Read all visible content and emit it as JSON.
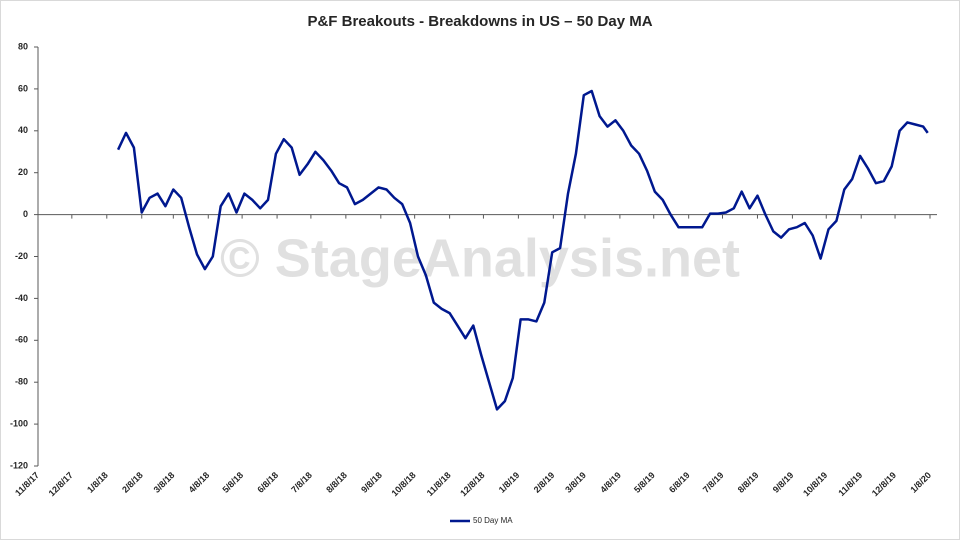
{
  "chart_data": {
    "type": "line",
    "title": "P&F Breakouts - Breakdowns in US – 50 Day MA",
    "watermark": "© StageAnalysis.net",
    "x": [
      "1/18/18",
      "1/25/18",
      "2/1/18",
      "2/8/18",
      "2/15/18",
      "2/22/18",
      "3/1/18",
      "3/8/18",
      "3/15/18",
      "3/22/18",
      "3/29/18",
      "4/5/18",
      "4/12/18",
      "4/19/18",
      "4/26/18",
      "5/3/18",
      "5/10/18",
      "5/17/18",
      "5/24/18",
      "5/31/18",
      "6/7/18",
      "6/14/18",
      "6/21/18",
      "6/28/18",
      "7/5/18",
      "7/12/18",
      "7/19/18",
      "7/26/18",
      "8/2/18",
      "8/9/18",
      "8/16/18",
      "8/23/18",
      "8/30/18",
      "9/6/18",
      "9/13/18",
      "9/20/18",
      "9/27/18",
      "10/4/18",
      "10/11/18",
      "10/18/18",
      "10/25/18",
      "11/1/18",
      "11/8/18",
      "11/15/18",
      "11/22/18",
      "11/29/18",
      "12/6/18",
      "12/13/18",
      "12/20/18",
      "12/27/18",
      "1/3/19",
      "1/10/19",
      "1/17/19",
      "1/24/19",
      "1/31/19",
      "2/7/19",
      "2/14/19",
      "2/21/19",
      "2/28/19",
      "3/7/19",
      "3/14/19",
      "3/21/19",
      "3/28/19",
      "4/4/19",
      "4/11/19",
      "4/18/19",
      "4/25/19",
      "5/2/19",
      "5/9/19",
      "5/16/19",
      "5/23/19",
      "5/30/19",
      "6/6/19",
      "6/13/19",
      "6/20/19",
      "6/27/19",
      "7/4/19",
      "7/11/19",
      "7/18/19",
      "7/25/19",
      "8/1/19",
      "8/8/19",
      "8/15/19",
      "8/22/19",
      "8/29/19",
      "9/5/19",
      "9/12/19",
      "9/19/19",
      "9/26/19",
      "10/3/19",
      "10/10/19",
      "10/17/19",
      "10/24/19",
      "10/31/19",
      "11/7/19",
      "11/14/19",
      "11/21/19",
      "11/28/19",
      "12/5/19",
      "12/12/19",
      "12/19/19",
      "12/26/19",
      "1/2/20",
      "1/6/20"
    ],
    "series": [
      {
        "name": "50 Day MA",
        "color": "#00188f",
        "values": [
          31,
          39,
          32,
          1,
          8,
          10,
          4,
          12,
          8,
          -6,
          -19,
          -26,
          -20,
          4,
          10,
          1,
          10,
          7,
          3,
          7,
          29,
          36,
          32,
          19,
          24,
          30,
          26,
          21,
          15,
          13,
          5,
          7,
          10,
          13,
          12,
          8,
          5,
          -4,
          -20,
          -29,
          -42,
          -45,
          -47,
          -53,
          -59,
          -53,
          -67,
          -80,
          -93,
          -89,
          -78,
          -50,
          -50,
          -51,
          -42,
          -18,
          -16,
          10,
          29,
          57,
          59,
          47,
          42,
          45,
          40,
          33,
          29,
          21,
          11,
          7,
          0,
          -6,
          -6,
          -6,
          -6,
          0.5,
          0.5,
          1,
          3,
          11,
          3,
          9,
          0,
          -8,
          -11,
          -7,
          -6,
          -4,
          -10,
          -21,
          -7,
          -3,
          12,
          17,
          28,
          22,
          15,
          16,
          23,
          40,
          44,
          43,
          42,
          39
        ]
      }
    ],
    "xlim": [
      "11/8/17",
      "1/8/20"
    ],
    "xticks": [
      "11/8/17",
      "12/8/17",
      "1/8/18",
      "2/8/18",
      "3/8/18",
      "4/8/18",
      "5/8/18",
      "6/8/18",
      "7/8/18",
      "8/8/18",
      "9/8/18",
      "10/8/18",
      "11/8/18",
      "12/8/18",
      "1/8/19",
      "2/8/19",
      "3/8/19",
      "4/8/19",
      "5/8/19",
      "6/8/19",
      "7/8/19",
      "8/8/19",
      "9/8/19",
      "10/8/19",
      "11/8/19",
      "12/8/19",
      "1/8/20"
    ],
    "ylim": [
      -120,
      80
    ],
    "yticks": [
      -120,
      -100,
      -80,
      -60,
      -40,
      -20,
      0,
      20,
      40,
      60,
      80
    ],
    "grid": false,
    "legend": "bottom"
  }
}
